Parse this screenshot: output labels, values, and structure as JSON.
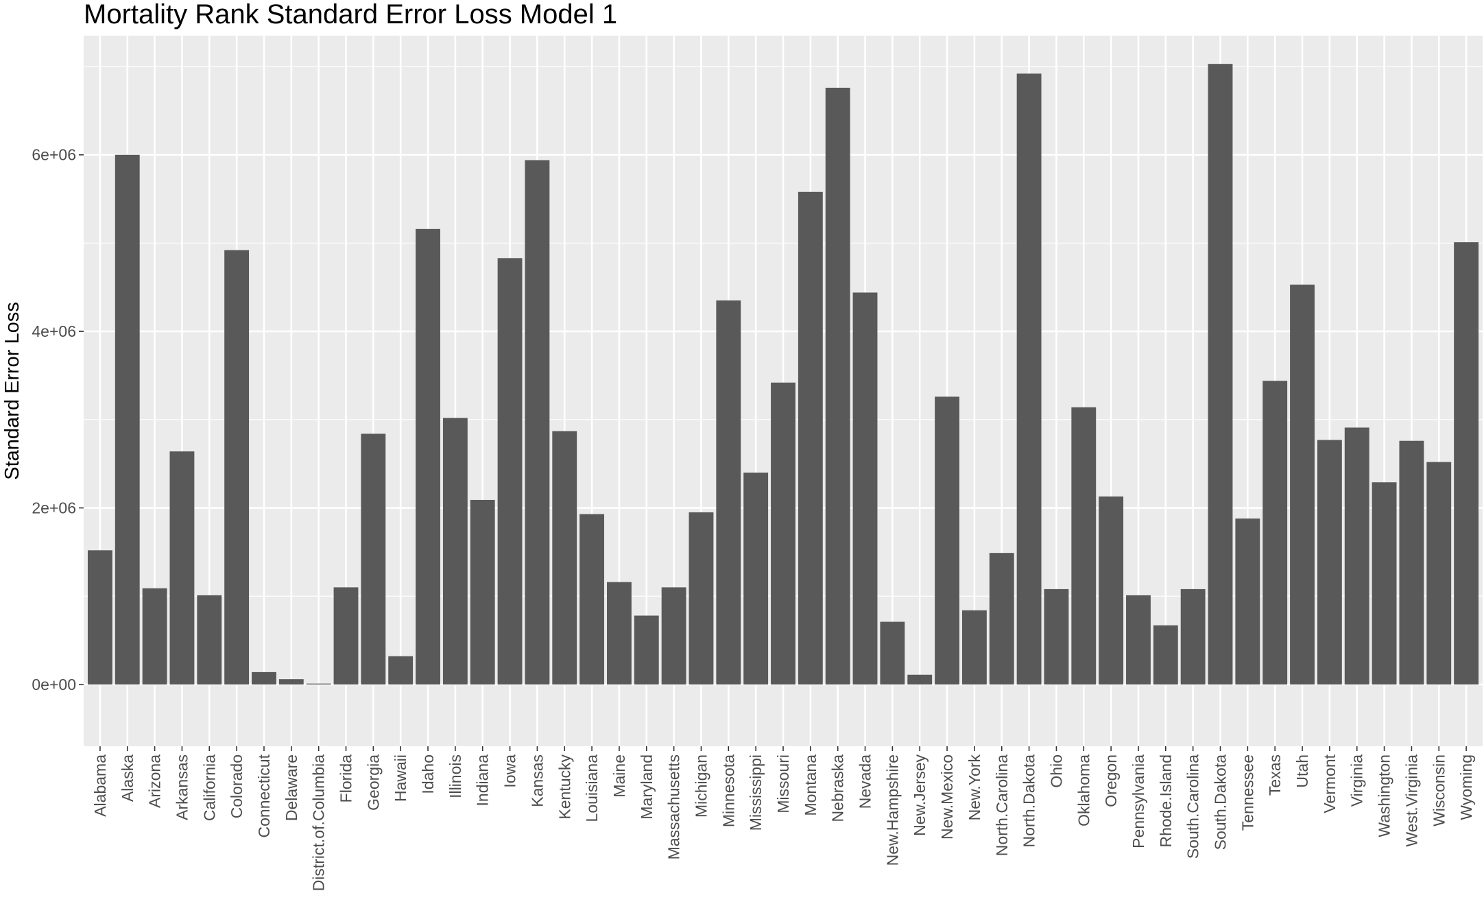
{
  "chart_data": {
    "type": "bar",
    "title": "Mortality Rank Standard Error Loss Model 1",
    "xlabel": "",
    "ylabel": "Standard Error Loss",
    "ylim": [
      -700000,
      7350000
    ],
    "yticks": [
      0,
      2000000,
      4000000,
      6000000
    ],
    "ytick_labels": [
      "0e+00",
      "2e+06",
      "4e+06",
      "6e+06"
    ],
    "grid": true,
    "legend": "none",
    "bar_color": "#595959",
    "panel_color": "#ebebeb",
    "categories": [
      "Alabama",
      "Alaska",
      "Arizona",
      "Arkansas",
      "California",
      "Colorado",
      "Connecticut",
      "Delaware",
      "District.of.Columbia",
      "Florida",
      "Georgia",
      "Hawaii",
      "Idaho",
      "Illinois",
      "Indiana",
      "Iowa",
      "Kansas",
      "Kentucky",
      "Louisiana",
      "Maine",
      "Maryland",
      "Massachusetts",
      "Michigan",
      "Minnesota",
      "Mississippi",
      "Missouri",
      "Montana",
      "Nebraska",
      "Nevada",
      "New.Hampshire",
      "New.Jersey",
      "New.Mexico",
      "New.York",
      "North.Carolina",
      "North.Dakota",
      "Ohio",
      "Oklahoma",
      "Oregon",
      "Pennsylvania",
      "Rhode.Island",
      "South.Carolina",
      "South.Dakota",
      "Tennessee",
      "Texas",
      "Utah",
      "Vermont",
      "Virginia",
      "Washington",
      "West.Virginia",
      "Wisconsin",
      "Wyoming"
    ],
    "values": [
      1520000,
      6000000,
      1090000,
      2640000,
      1010000,
      4920000,
      140000,
      60000,
      10000,
      1100000,
      2840000,
      320000,
      5160000,
      3020000,
      2090000,
      4830000,
      5940000,
      2870000,
      1930000,
      1160000,
      780000,
      1100000,
      1950000,
      4350000,
      2400000,
      3420000,
      5580000,
      6760000,
      4440000,
      710000,
      110000,
      3260000,
      840000,
      1490000,
      6920000,
      1080000,
      3140000,
      2130000,
      1010000,
      670000,
      1080000,
      7030000,
      1880000,
      3440000,
      4530000,
      2770000,
      2910000,
      2290000,
      2760000,
      2520000,
      5010000
    ]
  }
}
